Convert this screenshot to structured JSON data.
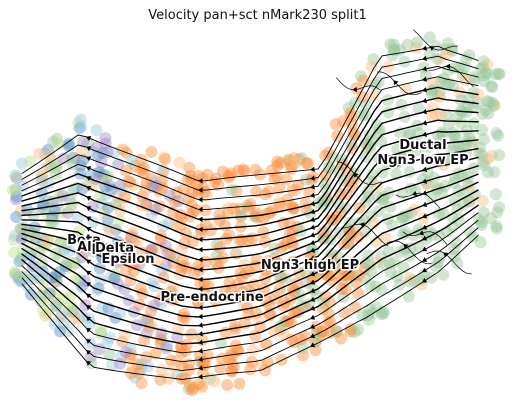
{
  "chart_data": {
    "type": "scatter",
    "title": "Velocity pan+sct nMark230 split1",
    "xlabel": "",
    "ylabel": "",
    "axes_visible": false,
    "grid": false,
    "legend": "none",
    "overlay": "velocity streamlines with arrowheads",
    "clusters": [
      {
        "name": "Ductal",
        "color": "#8fbc8f"
      },
      {
        "name": "Ngn3 low EP",
        "color": "#f4a460"
      },
      {
        "name": "Ngn3 high EP",
        "color": "#ff8c1a"
      },
      {
        "name": "Pre-endocrine",
        "color": "#fdae6b"
      },
      {
        "name": "Beta",
        "color": "#9ecae1"
      },
      {
        "name": "Alpha",
        "color": "#4682b4"
      },
      {
        "name": "Delta",
        "color": "#b3de69"
      },
      {
        "name": "Epsilon",
        "color": "#9467bd"
      }
    ],
    "palette": {
      "ductal": "#9cc79c",
      "orange": "#fd8d3c",
      "light_orange": "#fdbf86",
      "blue": "#5a8fc4",
      "light_blue": "#9ecae1",
      "lime": "#c2e08c",
      "purple": "#a08cc8",
      "stream": "#000000"
    }
  }
}
